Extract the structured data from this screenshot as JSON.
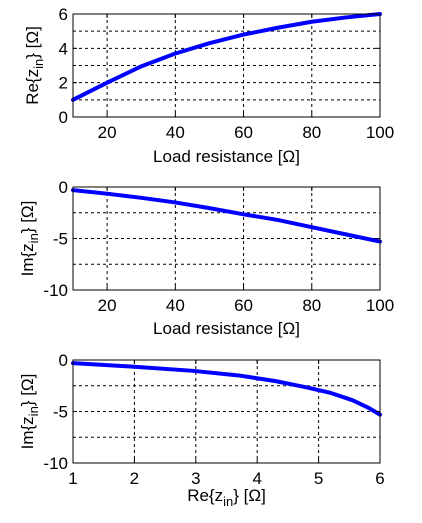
{
  "chart_data": [
    {
      "type": "line",
      "xlabel": "Load resistance [Ω]",
      "ylabel": "Re{z_in} [Ω]",
      "xlim": [
        10,
        100
      ],
      "ylim": [
        0,
        6
      ],
      "xticks": [
        20,
        40,
        60,
        80,
        100
      ],
      "yticks": [
        0,
        2,
        4,
        6
      ],
      "grid": true,
      "series": [
        {
          "color": "#0000ff",
          "x": [
            10,
            20,
            30,
            40,
            50,
            60,
            70,
            80,
            90,
            100
          ],
          "y": [
            1.0,
            2.0,
            2.95,
            3.7,
            4.3,
            4.8,
            5.2,
            5.55,
            5.8,
            6.0
          ]
        }
      ]
    },
    {
      "type": "line",
      "xlabel": "Load resistance [Ω]",
      "ylabel": "Im{z_in} [Ω]",
      "xlim": [
        10,
        100
      ],
      "ylim": [
        -10,
        0
      ],
      "xticks": [
        20,
        40,
        60,
        80,
        100
      ],
      "yticks": [
        -10,
        -5,
        0
      ],
      "grid": true,
      "series": [
        {
          "color": "#0000ff",
          "x": [
            10,
            20,
            30,
            40,
            50,
            60,
            70,
            80,
            90,
            100
          ],
          "y": [
            -0.3,
            -0.65,
            -1.05,
            -1.5,
            -2.05,
            -2.65,
            -3.2,
            -3.9,
            -4.6,
            -5.3
          ]
        }
      ]
    },
    {
      "type": "line",
      "xlabel": "Re{z_in} [Ω]",
      "ylabel": "Im{z_in} [Ω]",
      "xlim": [
        1,
        6
      ],
      "ylim": [
        -10,
        0
      ],
      "xticks": [
        1,
        2,
        3,
        4,
        5,
        6
      ],
      "yticks": [
        -10,
        -5,
        0
      ],
      "grid": true,
      "series": [
        {
          "color": "#0000ff",
          "x": [
            1.0,
            2.0,
            2.95,
            3.7,
            4.3,
            4.8,
            5.2,
            5.55,
            5.8,
            6.0
          ],
          "y": [
            -0.3,
            -0.65,
            -1.05,
            -1.5,
            -2.05,
            -2.65,
            -3.2,
            -3.9,
            -4.6,
            -5.3
          ]
        }
      ]
    }
  ]
}
